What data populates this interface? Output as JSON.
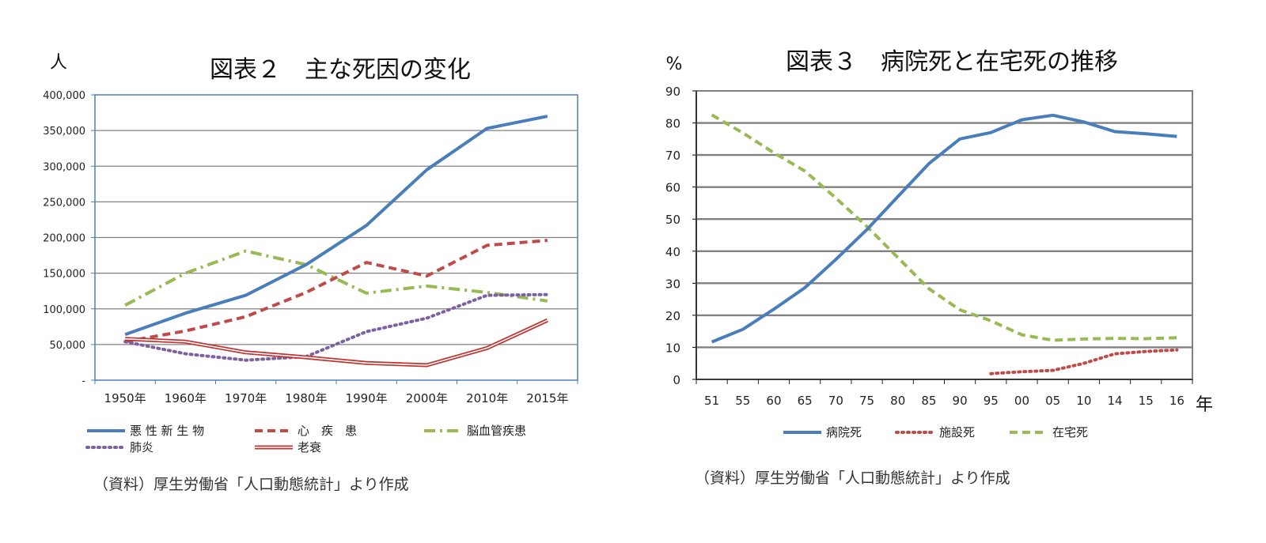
{
  "chart_data": [
    {
      "type": "line",
      "title": "図表２　主な死因の変化",
      "ylabel": "人",
      "xlabel": "",
      "categories": [
        "1950年",
        "1960年",
        "1970年",
        "1980年",
        "1990年",
        "2000年",
        "2010年",
        "2015年"
      ],
      "ylim": [
        0,
        400000
      ],
      "yticks": [
        "-",
        "50,000",
        "100,000",
        "150,000",
        "200,000",
        "250,000",
        "300,000",
        "350,000",
        "400,000"
      ],
      "grid": true,
      "legend_position": "bottom",
      "series": [
        {
          "name": "悪 性 新 生 物",
          "values": [
            64000,
            94000,
            119000,
            162000,
            217000,
            295000,
            353000,
            370000
          ],
          "color": "#4a7ebb",
          "style": "solid"
        },
        {
          "name": "心　疾　患",
          "values": [
            54000,
            69000,
            89000,
            123000,
            165000,
            146000,
            189000,
            196000
          ],
          "color": "#be4b48",
          "style": "dashed"
        },
        {
          "name": "脳血管疾患",
          "values": [
            105000,
            150000,
            181000,
            162000,
            122000,
            132000,
            123000,
            111000
          ],
          "color": "#98b954",
          "style": "dashdot"
        },
        {
          "name": "肺炎",
          "values": [
            54000,
            37000,
            28000,
            33000,
            68000,
            87000,
            119000,
            120000
          ],
          "color": "#7d60a0",
          "style": "dotted"
        },
        {
          "name": "老衰",
          "values": [
            58000,
            54000,
            39000,
            32000,
            24000,
            21000,
            45000,
            84000
          ],
          "color": "#c0312f",
          "style": "double"
        }
      ],
      "note": "（資料）厚生労働省「人口動態統計」より作成"
    },
    {
      "type": "line",
      "title": "図表３　病院死と在宅死の推移",
      "ylabel": "%",
      "xlabel": "年",
      "categories": [
        "51",
        "55",
        "60",
        "65",
        "70",
        "75",
        "80",
        "85",
        "90",
        "95",
        "00",
        "05",
        "10",
        "14",
        "15",
        "16"
      ],
      "ylim": [
        0,
        90
      ],
      "yticks": [
        "0",
        "10",
        "20",
        "30",
        "40",
        "50",
        "60",
        "70",
        "80",
        "90"
      ],
      "grid": true,
      "legend_position": "bottom",
      "series": [
        {
          "name": "病院死",
          "x": [
            1951,
            1955,
            1960,
            1965,
            1970,
            1975,
            1980,
            1985,
            1990,
            1995,
            2000,
            2005,
            2010,
            2014,
            2015,
            2016
          ],
          "values": [
            11.7,
            15.6,
            21.9,
            28.6,
            37.4,
            46.7,
            57.0,
            67.3,
            75.0,
            77.0,
            81.0,
            82.4,
            80.3,
            77.3,
            76.6,
            75.8
          ],
          "color": "#4a7ebb",
          "style": "solid"
        },
        {
          "name": "施設死",
          "x": [
            1995,
            2000,
            2005,
            2010,
            2014,
            2015,
            2016
          ],
          "values": [
            1.8,
            2.4,
            2.8,
            5.0,
            8.0,
            8.7,
            9.2
          ],
          "color": "#be4b48",
          "style": "dotted"
        },
        {
          "name": "在宅死",
          "x": [
            1951,
            1955,
            1960,
            1965,
            1970,
            1975,
            1980,
            1985,
            1990,
            1995,
            2000,
            2005,
            2010,
            2014,
            2015,
            2016
          ],
          "values": [
            82.5,
            76.9,
            70.7,
            65.0,
            56.6,
            47.7,
            38.0,
            28.3,
            21.7,
            18.3,
            13.9,
            12.2,
            12.6,
            12.8,
            12.7,
            13.0
          ],
          "color": "#98b954",
          "style": "dashed"
        }
      ],
      "note": "（資料）厚生労働省「人口動態統計」より作成"
    }
  ]
}
